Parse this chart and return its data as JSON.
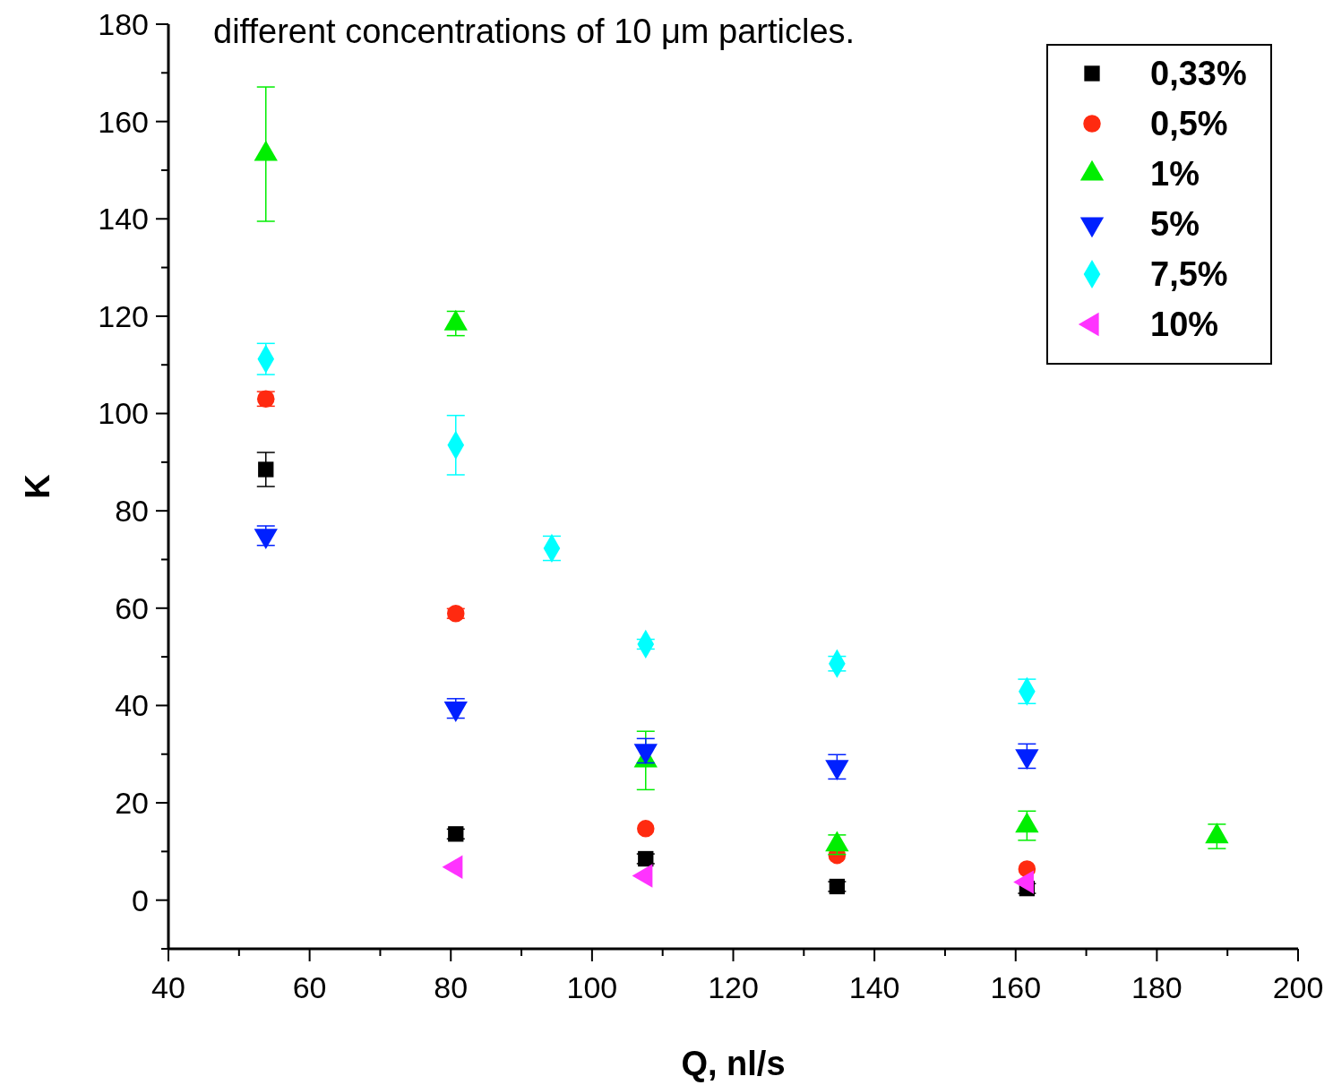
{
  "chart_data": {
    "type": "scatter",
    "title": "different concentrations of 10 μm particles.",
    "xlabel": "Q, nl/s",
    "ylabel": "K",
    "xlim": [
      40,
      200
    ],
    "ylim": [
      -10,
      180
    ],
    "xticks": [
      40,
      {
        "value": 50,
        "label": null
      },
      60,
      {
        "value": 70,
        "label": null
      },
      80,
      {
        "value": 90,
        "label": null
      },
      100,
      {
        "value": 110,
        "label": null
      },
      120,
      {
        "value": 130,
        "label": null
      },
      140,
      {
        "value": 150,
        "label": null
      },
      160,
      {
        "value": 170,
        "label": null
      },
      180,
      {
        "value": 190,
        "label": null
      },
      200
    ],
    "yticks": [
      {
        "value": -10,
        "label": null
      },
      0,
      {
        "value": 10,
        "label": null
      },
      20,
      {
        "value": 30,
        "label": null
      },
      40,
      {
        "value": 50,
        "label": null
      },
      60,
      {
        "value": 70,
        "label": null
      },
      80,
      {
        "value": 90,
        "label": null
      },
      100,
      {
        "value": 110,
        "label": null
      },
      120,
      {
        "value": 130,
        "label": null
      },
      140,
      {
        "value": 150,
        "label": null
      },
      160,
      {
        "value": 170,
        "label": null
      },
      180
    ],
    "grid": false,
    "legend": "top right",
    "series": [
      {
        "name": "0,33%",
        "color": "#000000",
        "marker": "square",
        "x": [
          53.8,
          80.7,
          107.6,
          134.7,
          161.6
        ],
        "values": [
          88.5,
          13.6,
          8.5,
          2.8,
          2.4
        ],
        "errors": [
          3.5,
          1,
          1,
          1,
          1
        ]
      },
      {
        "name": "0,5%",
        "color": "#ff2a10",
        "marker": "circle",
        "x": [
          53.8,
          80.7,
          107.6,
          134.7,
          161.6
        ],
        "values": [
          103,
          58.9,
          14.7,
          9.2,
          6.4
        ],
        "errors": [
          1.5,
          1,
          null,
          null,
          null
        ]
      },
      {
        "name": "1%",
        "color": "#00ee00",
        "marker": "triangle",
        "x": [
          53.8,
          80.7,
          107.6,
          134.7,
          161.6,
          188.5
        ],
        "values": [
          153.3,
          118.5,
          28.7,
          11.4,
          15.3,
          13.1
        ],
        "errors": [
          13.8,
          2.5,
          6,
          2,
          3,
          2.5
        ]
      },
      {
        "name": "5%",
        "color": "#0020ff",
        "marker": "triangle-down",
        "x": [
          53.8,
          80.7,
          107.6,
          134.7,
          161.6
        ],
        "values": [
          74.9,
          39.4,
          30.7,
          27.4,
          29.6
        ],
        "errors": [
          2,
          2,
          2.5,
          2.5,
          2.5
        ]
      },
      {
        "name": "7,5%",
        "color": "#00ffff",
        "marker": "diamond",
        "x": [
          53.8,
          80.7,
          94.3,
          107.6,
          134.7,
          161.6
        ],
        "values": [
          111.2,
          93.5,
          72.3,
          52.6,
          48.6,
          42.9
        ],
        "errors": [
          3.2,
          6.1,
          2.5,
          1,
          1.5,
          2.5
        ]
      },
      {
        "name": "10%",
        "color": "#ff33ff",
        "marker": "triangle-left",
        "x": [
          80.7,
          107.6,
          161.6
        ],
        "values": [
          6.8,
          5,
          3.7
        ]
      }
    ]
  }
}
